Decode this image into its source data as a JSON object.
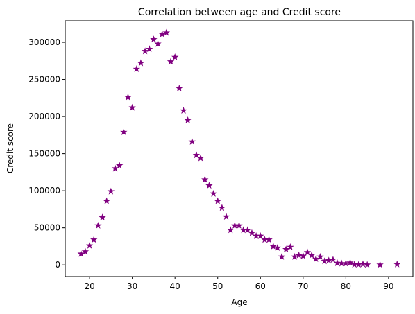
{
  "chart_data": {
    "type": "scatter",
    "title": "Correlation between age and Credit score",
    "xlabel": "Age",
    "ylabel": "Credit score",
    "xlim": [
      14.3,
      95.7
    ],
    "ylim": [
      -15700,
      329000
    ],
    "xticks": [
      20,
      30,
      40,
      50,
      60,
      70,
      80,
      90
    ],
    "yticks": [
      0,
      50000,
      100000,
      150000,
      200000,
      250000,
      300000
    ],
    "marker": "star",
    "color": "#800080",
    "grid": false,
    "points": [
      {
        "x": 18,
        "y": 15000
      },
      {
        "x": 19,
        "y": 18000
      },
      {
        "x": 20,
        "y": 26000
      },
      {
        "x": 21,
        "y": 34000
      },
      {
        "x": 22,
        "y": 53000
      },
      {
        "x": 23,
        "y": 64000
      },
      {
        "x": 24,
        "y": 86000
      },
      {
        "x": 25,
        "y": 99000
      },
      {
        "x": 26,
        "y": 130000
      },
      {
        "x": 27,
        "y": 134000
      },
      {
        "x": 28,
        "y": 179000
      },
      {
        "x": 29,
        "y": 226000
      },
      {
        "x": 30,
        "y": 212000
      },
      {
        "x": 31,
        "y": 264000
      },
      {
        "x": 32,
        "y": 272000
      },
      {
        "x": 33,
        "y": 288000
      },
      {
        "x": 34,
        "y": 291000
      },
      {
        "x": 35,
        "y": 304000
      },
      {
        "x": 36,
        "y": 298000
      },
      {
        "x": 37,
        "y": 311000
      },
      {
        "x": 38,
        "y": 313000
      },
      {
        "x": 39,
        "y": 274000
      },
      {
        "x": 40,
        "y": 280000
      },
      {
        "x": 41,
        "y": 238000
      },
      {
        "x": 42,
        "y": 208000
      },
      {
        "x": 43,
        "y": 195000
      },
      {
        "x": 44,
        "y": 166000
      },
      {
        "x": 45,
        "y": 148000
      },
      {
        "x": 46,
        "y": 144000
      },
      {
        "x": 47,
        "y": 115000
      },
      {
        "x": 48,
        "y": 107000
      },
      {
        "x": 49,
        "y": 96000
      },
      {
        "x": 50,
        "y": 86000
      },
      {
        "x": 51,
        "y": 77000
      },
      {
        "x": 52,
        "y": 65000
      },
      {
        "x": 53,
        "y": 47000
      },
      {
        "x": 54,
        "y": 53000
      },
      {
        "x": 55,
        "y": 53000
      },
      {
        "x": 56,
        "y": 47000
      },
      {
        "x": 57,
        "y": 47000
      },
      {
        "x": 58,
        "y": 43000
      },
      {
        "x": 59,
        "y": 39000
      },
      {
        "x": 60,
        "y": 39000
      },
      {
        "x": 61,
        "y": 34000
      },
      {
        "x": 62,
        "y": 34000
      },
      {
        "x": 63,
        "y": 25000
      },
      {
        "x": 64,
        "y": 23000
      },
      {
        "x": 65,
        "y": 11000
      },
      {
        "x": 66,
        "y": 21000
      },
      {
        "x": 67,
        "y": 24000
      },
      {
        "x": 68,
        "y": 11000
      },
      {
        "x": 69,
        "y": 13000
      },
      {
        "x": 70,
        "y": 12000
      },
      {
        "x": 71,
        "y": 17000
      },
      {
        "x": 72,
        "y": 13000
      },
      {
        "x": 73,
        "y": 8000
      },
      {
        "x": 74,
        "y": 11000
      },
      {
        "x": 75,
        "y": 5000
      },
      {
        "x": 76,
        "y": 6000
      },
      {
        "x": 77,
        "y": 7000
      },
      {
        "x": 78,
        "y": 2500
      },
      {
        "x": 79,
        "y": 2000
      },
      {
        "x": 80,
        "y": 2000
      },
      {
        "x": 81,
        "y": 3000
      },
      {
        "x": 82,
        "y": 500
      },
      {
        "x": 83,
        "y": 600
      },
      {
        "x": 84,
        "y": 1000
      },
      {
        "x": 85,
        "y": 200
      },
      {
        "x": 88,
        "y": 200
      },
      {
        "x": 92,
        "y": 800
      }
    ]
  }
}
